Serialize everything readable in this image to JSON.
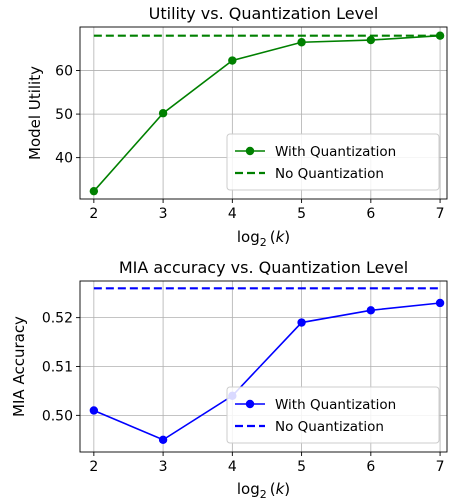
{
  "chart_data": [
    {
      "type": "line",
      "title": "Utility vs. Quantization Level",
      "xlabel_base": "log",
      "xlabel_sub": "2",
      "xlabel_arg": "(",
      "xlabel_var": "k",
      "xlabel_close": ")",
      "ylabel": "Model Utility",
      "x": [
        2,
        3,
        4,
        5,
        6,
        7
      ],
      "xlim": [
        1.8,
        7.1
      ],
      "ylim": [
        30.5,
        70.0
      ],
      "yticks": [
        40,
        50,
        60
      ],
      "series": [
        {
          "name": "With Quantization",
          "values": [
            32.3,
            50.2,
            62.3,
            66.5,
            67.0,
            68.0
          ],
          "color": "#008000",
          "style": "solid-marker"
        },
        {
          "name": "No Quantization",
          "values": [
            68.0,
            68.0,
            68.0,
            68.0,
            68.0,
            68.0
          ],
          "color": "#008000",
          "style": "dashed"
        }
      ],
      "grid": true,
      "legend": "lower-right"
    },
    {
      "type": "line",
      "title": "MIA accuracy vs. Quantization Level",
      "xlabel_base": "log",
      "xlabel_sub": "2",
      "xlabel_arg": "(",
      "xlabel_var": "k",
      "xlabel_close": ")",
      "ylabel": "MIA Accuracy",
      "x": [
        2,
        3,
        4,
        5,
        6,
        7
      ],
      "xlim": [
        1.8,
        7.1
      ],
      "ylim": [
        0.4925,
        0.5275
      ],
      "yticks": [
        0.5,
        0.51,
        0.52
      ],
      "ytick_labels": [
        "0.50",
        "0.51",
        "0.52"
      ],
      "series": [
        {
          "name": "With Quantization",
          "values": [
            0.501,
            0.495,
            0.504,
            0.519,
            0.5215,
            0.523
          ],
          "color": "#0000ff",
          "style": "solid-marker"
        },
        {
          "name": "No Quantization",
          "values": [
            0.526,
            0.526,
            0.526,
            0.526,
            0.526,
            0.526
          ],
          "color": "#0000ff",
          "style": "dashed"
        }
      ],
      "grid": true,
      "legend": "lower-right"
    }
  ]
}
